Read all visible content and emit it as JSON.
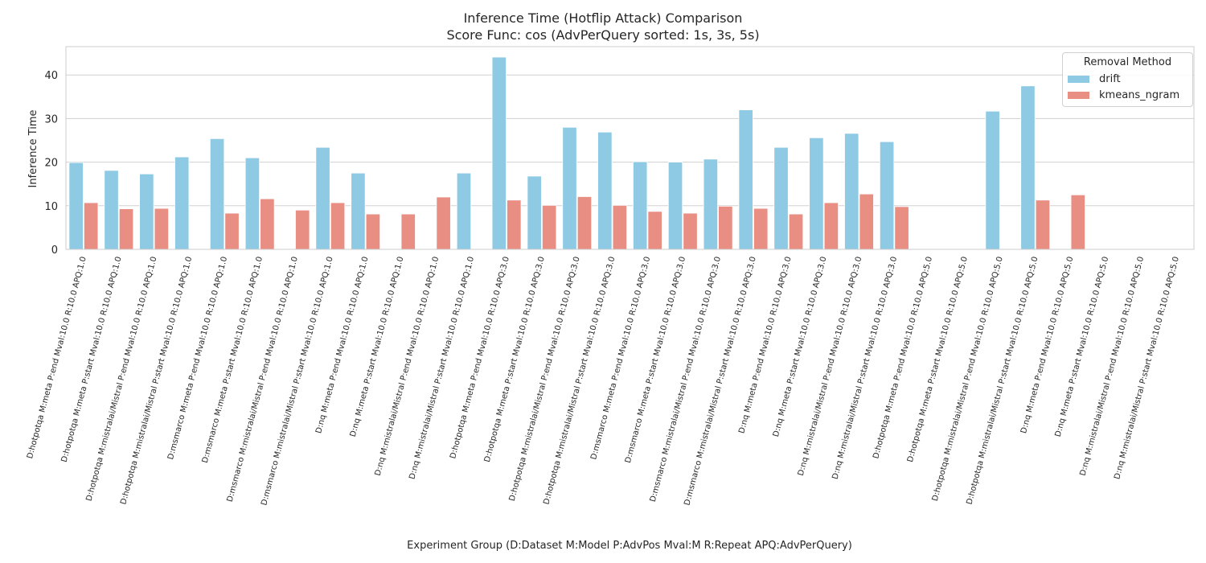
{
  "chart_data": {
    "type": "bar",
    "title": "Inference Time (Hotflip Attack) Comparison",
    "subtitle": "Score Func: cos (AdvPerQuery sorted: 1s, 3s, 5s)",
    "xlabel": "Experiment Group (D:Dataset M:Model P:AdvPos Mval:M R:Repeat APQ:AdvPerQuery)",
    "ylabel": "Inference Time",
    "ylim": [
      0,
      46.5
    ],
    "yticks": [
      0,
      10,
      20,
      30,
      40
    ],
    "grid": true,
    "legend": {
      "title": "Removal Method",
      "placement": "top-right"
    },
    "categories": [
      "D:hotpotqa M:meta P:end Mval:10.0 R:10.0 APQ:1.0",
      "D:hotpotqa M:meta P:start Mval:10.0 R:10.0 APQ:1.0",
      "D:hotpotqa M:mistralai/Mistral P:end Mval:10.0 R:10.0 APQ:1.0",
      "D:hotpotqa M:mistralai/Mistral P:start Mval:10.0 R:10.0 APQ:1.0",
      "D:msmarco M:meta P:end Mval:10.0 R:10.0 APQ:1.0",
      "D:msmarco M:meta P:start Mval:10.0 R:10.0 APQ:1.0",
      "D:msmarco M:mistralai/Mistral P:end Mval:10.0 R:10.0 APQ:1.0",
      "D:msmarco M:mistralai/Mistral P:start Mval:10.0 R:10.0 APQ:1.0",
      "D:nq M:meta P:end Mval:10.0 R:10.0 APQ:1.0",
      "D:nq M:meta P:start Mval:10.0 R:10.0 APQ:1.0",
      "D:nq M:mistralai/Mistral P:end Mval:10.0 R:10.0 APQ:1.0",
      "D:nq M:mistralai/Mistral P:start Mval:10.0 R:10.0 APQ:1.0",
      "D:hotpotqa M:meta P:end Mval:10.0 R:10.0 APQ:3.0",
      "D:hotpotqa M:meta P:start Mval:10.0 R:10.0 APQ:3.0",
      "D:hotpotqa M:mistralai/Mistral P:end Mval:10.0 R:10.0 APQ:3.0",
      "D:hotpotqa M:mistralai/Mistral P:start Mval:10.0 R:10.0 APQ:3.0",
      "D:msmarco M:meta P:end Mval:10.0 R:10.0 APQ:3.0",
      "D:msmarco M:meta P:start Mval:10.0 R:10.0 APQ:3.0",
      "D:msmarco M:mistralai/Mistral P:end Mval:10.0 R:10.0 APQ:3.0",
      "D:msmarco M:mistralai/Mistral P:start Mval:10.0 R:10.0 APQ:3.0",
      "D:nq M:meta P:end Mval:10.0 R:10.0 APQ:3.0",
      "D:nq M:meta P:start Mval:10.0 R:10.0 APQ:3.0",
      "D:nq M:mistralai/Mistral P:end Mval:10.0 R:10.0 APQ:3.0",
      "D:nq M:mistralai/Mistral P:start Mval:10.0 R:10.0 APQ:3.0",
      "D:hotpotqa M:meta P:end Mval:10.0 R:10.0 APQ:5.0",
      "D:hotpotqa M:meta P:start Mval:10.0 R:10.0 APQ:5.0",
      "D:hotpotqa M:mistralai/Mistral P:end Mval:10.0 R:10.0 APQ:5.0",
      "D:hotpotqa M:mistralai/Mistral P:start Mval:10.0 R:10.0 APQ:5.0",
      "D:nq M:meta P:end Mval:10.0 R:10.0 APQ:5.0",
      "D:nq M:meta P:start Mval:10.0 R:10.0 APQ:5.0",
      "D:nq M:mistralai/Mistral P:end Mval:10.0 R:10.0 APQ:5.0",
      "D:nq M:mistralai/Mistral P:start Mval:10.0 R:10.0 APQ:5.0"
    ],
    "series": [
      {
        "name": "drift",
        "color": "#8ecae3",
        "values": [
          19.9,
          18.1,
          17.3,
          21.2,
          25.4,
          21.0,
          null,
          23.4,
          17.5,
          null,
          null,
          17.5,
          44.1,
          16.8,
          28.0,
          26.9,
          20.1,
          20.0,
          20.7,
          32.0,
          23.4,
          25.6,
          26.6,
          24.7,
          null,
          null,
          31.7,
          37.5,
          null,
          null,
          null,
          null
        ]
      },
      {
        "name": "kmeans_ngram",
        "color": "#e98e83",
        "values": [
          10.7,
          9.3,
          9.4,
          null,
          8.3,
          11.6,
          9.0,
          10.7,
          8.1,
          8.1,
          12.0,
          null,
          11.3,
          10.1,
          12.1,
          10.1,
          8.7,
          8.3,
          9.9,
          9.4,
          8.1,
          10.7,
          12.7,
          9.8,
          null,
          null,
          null,
          11.3,
          12.5,
          null,
          null,
          null
        ]
      }
    ]
  }
}
